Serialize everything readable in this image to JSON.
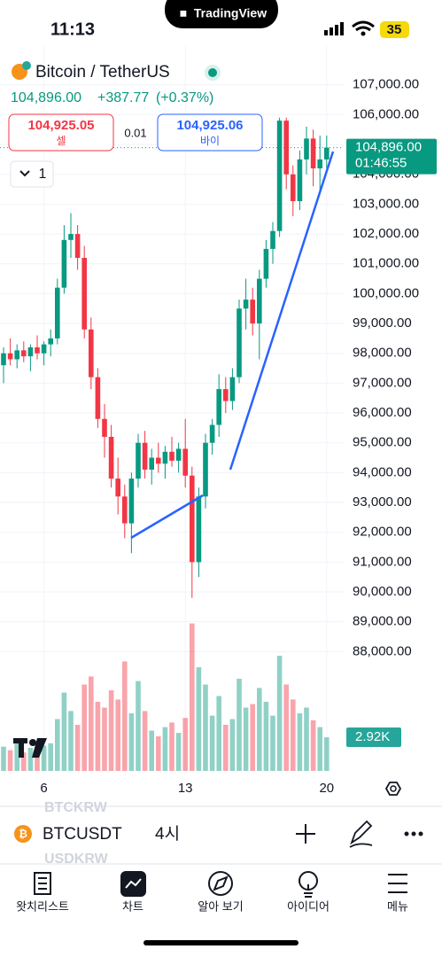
{
  "status": {
    "time": "11:13",
    "island": "TradingView",
    "battery": "35"
  },
  "header": {
    "title": "Bitcoin / TetherUS",
    "price": "104,896.00",
    "change": "+387.77",
    "change_pct": "(+0.37%)",
    "sell_price": "104,925.05",
    "sell_label": "셀",
    "spread": "0.01",
    "buy_price": "104,925.06",
    "buy_label": "바이",
    "interval": "1"
  },
  "chart_data": {
    "type": "candlestick",
    "categories": [
      null,
      null,
      null,
      null,
      null,
      null,
      "6",
      null,
      null,
      null,
      null,
      null,
      null,
      null,
      null,
      null,
      null,
      null,
      null,
      null,
      null,
      null,
      null,
      null,
      null,
      null,
      null,
      "13",
      null,
      null,
      null,
      null,
      null,
      null,
      null,
      null,
      null,
      null,
      null,
      null,
      null,
      null,
      null,
      null,
      null,
      null,
      null,
      null,
      "20"
    ],
    "open": [
      97600,
      98000,
      97800,
      98100,
      97900,
      98200,
      98000,
      98300,
      98500,
      100200,
      101800,
      102000,
      101200,
      98800,
      97200,
      95800,
      95200,
      93800,
      93200,
      92300,
      93800,
      95000,
      94100,
      94500,
      94300,
      94700,
      94400,
      94800,
      93900,
      91000,
      93200,
      95000,
      95600,
      96800,
      96400,
      97200,
      99500,
      99800,
      99000,
      100500,
      101500,
      102100,
      105800,
      104000,
      103100,
      104500,
      105200,
      104200,
      104500
    ],
    "high": [
      98200,
      98500,
      98300,
      98400,
      98300,
      98600,
      98400,
      98800,
      100500,
      102300,
      102700,
      102300,
      101600,
      99200,
      97500,
      96300,
      95600,
      94500,
      93600,
      94000,
      95300,
      95400,
      94800,
      95000,
      94900,
      95200,
      95000,
      95800,
      94200,
      93500,
      95300,
      95800,
      97300,
      97200,
      97500,
      99800,
      100500,
      100200,
      100800,
      101800,
      102400,
      105900,
      105900,
      104300,
      104800,
      105600,
      105500,
      105300,
      105300
    ],
    "low": [
      97000,
      97600,
      97500,
      97700,
      97400,
      97800,
      97600,
      97900,
      98300,
      100000,
      101200,
      100800,
      98500,
      96800,
      95500,
      94500,
      93500,
      92600,
      91800,
      91300,
      93500,
      93800,
      93600,
      94000,
      93800,
      94200,
      94000,
      93500,
      89800,
      90500,
      92800,
      94600,
      95200,
      96000,
      96100,
      97000,
      98800,
      98600,
      97800,
      100200,
      101000,
      101900,
      103500,
      102600,
      102800,
      104000,
      103600,
      103400,
      104200
    ],
    "close": [
      98000,
      97800,
      98100,
      97900,
      98200,
      98000,
      98300,
      98500,
      100200,
      101800,
      102000,
      101200,
      98800,
      97200,
      95800,
      95200,
      93800,
      93200,
      92300,
      93800,
      95000,
      94100,
      94500,
      94300,
      94700,
      94400,
      94800,
      93900,
      91000,
      93200,
      95000,
      95600,
      96800,
      96400,
      97200,
      99500,
      99800,
      99000,
      100500,
      101500,
      102100,
      105800,
      104000,
      103100,
      104500,
      105200,
      104200,
      104500,
      104896
    ],
    "up_color": "#089981",
    "down_color": "#f23645",
    "ylim": [
      84000,
      108300
    ],
    "yticks": [
      {
        "value": 107000,
        "label": "107,000.00"
      },
      {
        "value": 106000,
        "label": "106,000.00"
      },
      {
        "value": 105000,
        "label": "105,000.00"
      },
      {
        "value": 104000,
        "label": "104,000.00"
      },
      {
        "value": 103000,
        "label": "103,000.00"
      },
      {
        "value": 102000,
        "label": "102,000.00"
      },
      {
        "value": 101000,
        "label": "101,000.00"
      },
      {
        "value": 100000,
        "label": "100,000.00"
      },
      {
        "value": 99000,
        "label": "99,000.00"
      },
      {
        "value": 98000,
        "label": "98,000.00"
      },
      {
        "value": 97000,
        "label": "97,000.00"
      },
      {
        "value": 96000,
        "label": "96,000.00"
      },
      {
        "value": 95000,
        "label": "95,000.00"
      },
      {
        "value": 94000,
        "label": "94,000.00"
      },
      {
        "value": 93000,
        "label": "93,000.00"
      },
      {
        "value": 92000,
        "label": "92,000.00"
      },
      {
        "value": 91000,
        "label": "91,000.00"
      },
      {
        "value": 90000,
        "label": "90,000.00"
      },
      {
        "value": 89000,
        "label": "89,000.00"
      },
      {
        "value": 88000,
        "label": "88,000.00"
      }
    ],
    "last_price": {
      "value": 104896,
      "label": "104,896.00",
      "countdown": "01:46:55"
    },
    "volume": {
      "values": [
        2.1,
        1.8,
        2.5,
        1.6,
        2.0,
        1.7,
        2.2,
        2.4,
        4.5,
        6.8,
        5.2,
        4.0,
        7.5,
        8.2,
        6.0,
        5.5,
        7.0,
        6.2,
        9.5,
        5.0,
        7.8,
        5.2,
        3.5,
        3.0,
        3.8,
        4.2,
        3.3,
        4.6,
        12.8,
        9.0,
        7.5,
        4.8,
        6.5,
        4.0,
        4.5,
        8.0,
        5.5,
        5.8,
        7.2,
        6.0,
        4.8,
        10.0,
        7.5,
        6.2,
        5.0,
        5.5,
        4.4,
        3.8,
        2.92
      ],
      "last_label": "2.92K"
    },
    "grid": true
  },
  "symbol_bar": {
    "above": "BTCKRW",
    "symbol": "BTCUSDT",
    "interval": "4시",
    "below": "USDKRW"
  },
  "nav": [
    "왓치리스트",
    "차트",
    "알아 보기",
    "아이디어",
    "메뉴"
  ]
}
